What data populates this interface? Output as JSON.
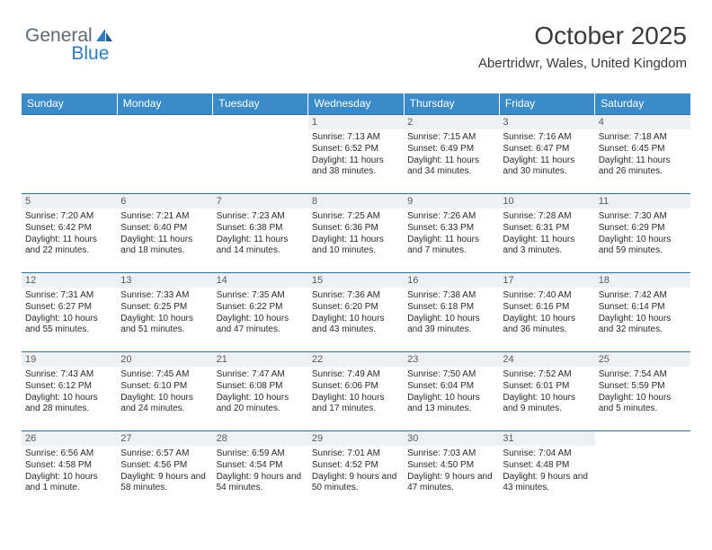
{
  "logo": {
    "text1": "General",
    "text2": "Blue"
  },
  "header": {
    "month": "October 2025",
    "location": "Abertridwr, Wales, United Kingdom"
  },
  "styling": {
    "header_bg": "#3b8bc9",
    "header_fg": "#ffffff",
    "daynum_bg": "#eef1f3",
    "border_color": "#2f6fa0",
    "body_fg": "#2a2a2a",
    "page_bg": "#ffffff",
    "logo_gray": "#5f6a72",
    "logo_blue": "#2f7bbf",
    "month_fontsize": 28,
    "location_fontsize": 15,
    "th_fontsize": 12,
    "cell_fontsize": 10
  },
  "dayNames": [
    "Sunday",
    "Monday",
    "Tuesday",
    "Wednesday",
    "Thursday",
    "Friday",
    "Saturday"
  ],
  "weeks": [
    [
      {
        "blank": true
      },
      {
        "blank": true
      },
      {
        "blank": true
      },
      {
        "num": "1",
        "sunrise": "7:13 AM",
        "sunset": "6:52 PM",
        "daylight": "11 hours and 38 minutes."
      },
      {
        "num": "2",
        "sunrise": "7:15 AM",
        "sunset": "6:49 PM",
        "daylight": "11 hours and 34 minutes."
      },
      {
        "num": "3",
        "sunrise": "7:16 AM",
        "sunset": "6:47 PM",
        "daylight": "11 hours and 30 minutes."
      },
      {
        "num": "4",
        "sunrise": "7:18 AM",
        "sunset": "6:45 PM",
        "daylight": "11 hours and 26 minutes."
      }
    ],
    [
      {
        "num": "5",
        "sunrise": "7:20 AM",
        "sunset": "6:42 PM",
        "daylight": "11 hours and 22 minutes."
      },
      {
        "num": "6",
        "sunrise": "7:21 AM",
        "sunset": "6:40 PM",
        "daylight": "11 hours and 18 minutes."
      },
      {
        "num": "7",
        "sunrise": "7:23 AM",
        "sunset": "6:38 PM",
        "daylight": "11 hours and 14 minutes."
      },
      {
        "num": "8",
        "sunrise": "7:25 AM",
        "sunset": "6:36 PM",
        "daylight": "11 hours and 10 minutes."
      },
      {
        "num": "9",
        "sunrise": "7:26 AM",
        "sunset": "6:33 PM",
        "daylight": "11 hours and 7 minutes."
      },
      {
        "num": "10",
        "sunrise": "7:28 AM",
        "sunset": "6:31 PM",
        "daylight": "11 hours and 3 minutes."
      },
      {
        "num": "11",
        "sunrise": "7:30 AM",
        "sunset": "6:29 PM",
        "daylight": "10 hours and 59 minutes."
      }
    ],
    [
      {
        "num": "12",
        "sunrise": "7:31 AM",
        "sunset": "6:27 PM",
        "daylight": "10 hours and 55 minutes."
      },
      {
        "num": "13",
        "sunrise": "7:33 AM",
        "sunset": "6:25 PM",
        "daylight": "10 hours and 51 minutes."
      },
      {
        "num": "14",
        "sunrise": "7:35 AM",
        "sunset": "6:22 PM",
        "daylight": "10 hours and 47 minutes."
      },
      {
        "num": "15",
        "sunrise": "7:36 AM",
        "sunset": "6:20 PM",
        "daylight": "10 hours and 43 minutes."
      },
      {
        "num": "16",
        "sunrise": "7:38 AM",
        "sunset": "6:18 PM",
        "daylight": "10 hours and 39 minutes."
      },
      {
        "num": "17",
        "sunrise": "7:40 AM",
        "sunset": "6:16 PM",
        "daylight": "10 hours and 36 minutes."
      },
      {
        "num": "18",
        "sunrise": "7:42 AM",
        "sunset": "6:14 PM",
        "daylight": "10 hours and 32 minutes."
      }
    ],
    [
      {
        "num": "19",
        "sunrise": "7:43 AM",
        "sunset": "6:12 PM",
        "daylight": "10 hours and 28 minutes."
      },
      {
        "num": "20",
        "sunrise": "7:45 AM",
        "sunset": "6:10 PM",
        "daylight": "10 hours and 24 minutes."
      },
      {
        "num": "21",
        "sunrise": "7:47 AM",
        "sunset": "6:08 PM",
        "daylight": "10 hours and 20 minutes."
      },
      {
        "num": "22",
        "sunrise": "7:49 AM",
        "sunset": "6:06 PM",
        "daylight": "10 hours and 17 minutes."
      },
      {
        "num": "23",
        "sunrise": "7:50 AM",
        "sunset": "6:04 PM",
        "daylight": "10 hours and 13 minutes."
      },
      {
        "num": "24",
        "sunrise": "7:52 AM",
        "sunset": "6:01 PM",
        "daylight": "10 hours and 9 minutes."
      },
      {
        "num": "25",
        "sunrise": "7:54 AM",
        "sunset": "5:59 PM",
        "daylight": "10 hours and 5 minutes."
      }
    ],
    [
      {
        "num": "26",
        "sunrise": "6:56 AM",
        "sunset": "4:58 PM",
        "daylight": "10 hours and 1 minute."
      },
      {
        "num": "27",
        "sunrise": "6:57 AM",
        "sunset": "4:56 PM",
        "daylight": "9 hours and 58 minutes."
      },
      {
        "num": "28",
        "sunrise": "6:59 AM",
        "sunset": "4:54 PM",
        "daylight": "9 hours and 54 minutes."
      },
      {
        "num": "29",
        "sunrise": "7:01 AM",
        "sunset": "4:52 PM",
        "daylight": "9 hours and 50 minutes."
      },
      {
        "num": "30",
        "sunrise": "7:03 AM",
        "sunset": "4:50 PM",
        "daylight": "9 hours and 47 minutes."
      },
      {
        "num": "31",
        "sunrise": "7:04 AM",
        "sunset": "4:48 PM",
        "daylight": "9 hours and 43 minutes."
      },
      {
        "blank": true
      }
    ]
  ],
  "labels": {
    "sunrise": "Sunrise:",
    "sunset": "Sunset:",
    "daylight": "Daylight:"
  }
}
